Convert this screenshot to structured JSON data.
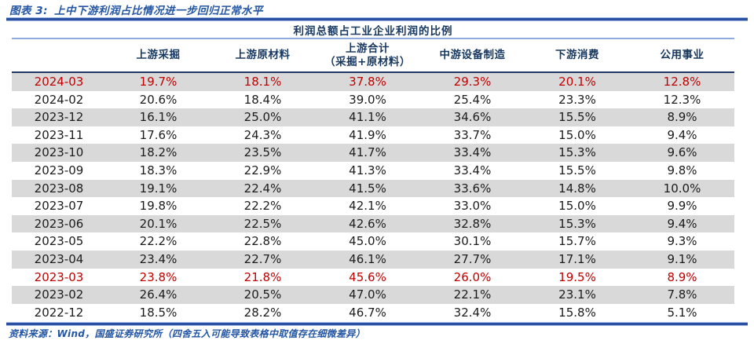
{
  "title": {
    "tag": "图表 3:",
    "text": "上中下游利润占比情况进一步回归正常水平"
  },
  "table": {
    "span_header": "利润总额占工业企业利润的比例",
    "columns": [
      {
        "label": "上游采掘"
      },
      {
        "label": "上游原材料"
      },
      {
        "label": "上游合计",
        "sublabel": "（采掘+原材料）"
      },
      {
        "label": "中游设备制造"
      },
      {
        "label": "下游消费"
      },
      {
        "label": "公用事业"
      }
    ],
    "rows": [
      {
        "date": "2024-03",
        "values": [
          "19.7%",
          "18.1%",
          "37.8%",
          "29.3%",
          "20.1%",
          "12.8%"
        ],
        "highlight": true
      },
      {
        "date": "2024-02",
        "values": [
          "20.6%",
          "18.4%",
          "39.0%",
          "25.4%",
          "23.3%",
          "12.3%"
        ],
        "highlight": false
      },
      {
        "date": "2023-12",
        "values": [
          "16.1%",
          "25.0%",
          "41.1%",
          "34.6%",
          "15.5%",
          "8.9%"
        ],
        "highlight": false
      },
      {
        "date": "2023-11",
        "values": [
          "17.6%",
          "24.3%",
          "41.9%",
          "33.7%",
          "15.0%",
          "9.4%"
        ],
        "highlight": false
      },
      {
        "date": "2023-10",
        "values": [
          "18.2%",
          "23.5%",
          "41.7%",
          "33.4%",
          "15.3%",
          "9.6%"
        ],
        "highlight": false
      },
      {
        "date": "2023-09",
        "values": [
          "18.3%",
          "22.9%",
          "41.3%",
          "33.4%",
          "15.5%",
          "9.8%"
        ],
        "highlight": false
      },
      {
        "date": "2023-08",
        "values": [
          "19.1%",
          "22.4%",
          "41.5%",
          "33.6%",
          "14.8%",
          "10.0%"
        ],
        "highlight": false
      },
      {
        "date": "2023-07",
        "values": [
          "19.8%",
          "22.2%",
          "42.1%",
          "33.0%",
          "15.0%",
          "9.9%"
        ],
        "highlight": false
      },
      {
        "date": "2023-06",
        "values": [
          "20.1%",
          "22.5%",
          "42.6%",
          "32.8%",
          "15.3%",
          "9.4%"
        ],
        "highlight": false
      },
      {
        "date": "2023-05",
        "values": [
          "22.2%",
          "22.8%",
          "45.0%",
          "30.1%",
          "15.7%",
          "9.3%"
        ],
        "highlight": false
      },
      {
        "date": "2023-04",
        "values": [
          "23.4%",
          "22.7%",
          "46.1%",
          "27.7%",
          "17.1%",
          "9.1%"
        ],
        "highlight": false
      },
      {
        "date": "2023-03",
        "values": [
          "23.8%",
          "21.8%",
          "45.6%",
          "26.0%",
          "19.5%",
          "8.9%"
        ],
        "highlight": true
      },
      {
        "date": "2023-02",
        "values": [
          "26.4%",
          "20.5%",
          "47.0%",
          "22.1%",
          "23.1%",
          "7.8%"
        ],
        "highlight": false
      },
      {
        "date": "2022-12",
        "values": [
          "18.5%",
          "28.2%",
          "46.7%",
          "32.4%",
          "15.8%",
          "5.1%"
        ],
        "highlight": false
      }
    ]
  },
  "footer": {
    "source": "资料来源：Wind，国盛证券研究所（四舍五入可能导致表格中取值存在细微差异）"
  },
  "colors": {
    "accent_blue": "#2B50A1",
    "title_blue": "#2456A4",
    "header_navy": "#17375E",
    "highlight_red": "#C00000",
    "row_gray": "#D9D9D9",
    "light_rule": "#8FAADC"
  }
}
